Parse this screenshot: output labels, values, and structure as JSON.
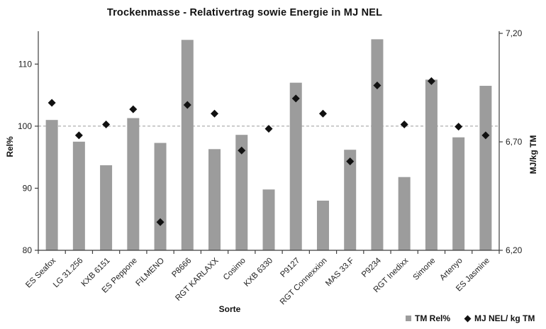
{
  "page": {
    "background": "#ffffff"
  },
  "chart_data": {
    "type": "bar",
    "subtype": "bar-with-line-markers-combo",
    "title": "Trockenmasse - Relativertrag sowie Energie in MJ NEL",
    "xlabel": "Sorte",
    "ylabel_left": "Rel%",
    "ylabel_right": "MJ/kg TM",
    "categories": [
      "ES Seafox",
      "LG 31.256",
      "KXB 6151",
      "ES Peppone",
      "FILMENO",
      "P8666",
      "RGT KARLAXX",
      "Cosimo",
      "KXB 6330",
      "P9127",
      "RGT Connexxion",
      "MAS 33.F",
      "P9234",
      "RGT Inedixx",
      "Simone",
      "Artenyo",
      "ES Jasmine"
    ],
    "series": [
      {
        "name": "TM Rel%",
        "mark": "bar",
        "axis": "left",
        "color": "#9c9c9c",
        "values": [
          101.0,
          97.5,
          93.7,
          101.3,
          97.3,
          113.9,
          96.3,
          98.6,
          89.8,
          107.0,
          88.0,
          96.2,
          114.0,
          91.8,
          107.5,
          98.2,
          106.5
        ]
      },
      {
        "name": "MJ NEL/ kg TM",
        "mark": "diamond",
        "axis": "right",
        "color": "#111111",
        "values": [
          6.88,
          6.73,
          6.78,
          6.85,
          6.33,
          6.87,
          6.83,
          6.66,
          6.76,
          6.9,
          6.83,
          6.61,
          6.96,
          6.78,
          6.98,
          6.77,
          6.73
        ]
      }
    ],
    "left_axis": {
      "min": 80,
      "max": 115.3,
      "ticks": [
        80,
        90,
        100,
        110
      ]
    },
    "right_axis": {
      "min": 6.2,
      "max": 7.21,
      "ticks": [
        {
          "v": 6.2,
          "label": "6,20"
        },
        {
          "v": 6.7,
          "label": "6,70"
        },
        {
          "v": 7.2,
          "label": "7,20"
        }
      ]
    },
    "reference_line": {
      "left_value": 100,
      "style": "dashed",
      "color": "#9a9a9a"
    },
    "grid": false,
    "legend_position": "bottom-right",
    "legend": [
      {
        "label": "TM Rel%",
        "swatch": "square",
        "color": "#9c9c9c"
      },
      {
        "label": "MJ NEL/ kg TM",
        "swatch": "diamond",
        "color": "#111111"
      }
    ],
    "axis_color": "#3f3f3f"
  }
}
